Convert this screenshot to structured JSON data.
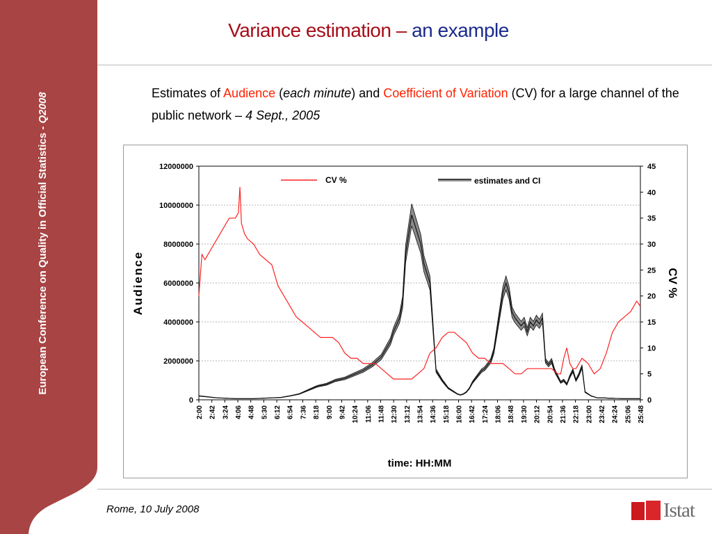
{
  "sidebar": {
    "conference": "European Conference on Quality in Official Statistics  -",
    "year": "Q2008",
    "color": "#a84444"
  },
  "slide": {
    "title_part1": "Variance estimation –",
    "title_part2": "an example"
  },
  "subtitle": {
    "p1": "Estimates of ",
    "audience": "Audience",
    "p2": " (",
    "each_minute": "each minute",
    "p3": ") and ",
    "cv": "Coefficient of Variation",
    "p4": " (CV) for a large channel of the public network – ",
    "date": "4 Sept., 2005"
  },
  "footer": {
    "location_date": "Rome, 10 July 2008"
  },
  "logo": {
    "text": "Istat"
  },
  "chart_data": {
    "type": "line",
    "xlabel": "time:  HH:MM",
    "ylabel": "Audience",
    "y2label": "CV %",
    "ylim": [
      0,
      12000000
    ],
    "y2lim": [
      0,
      45
    ],
    "yticks": [
      0,
      2000000,
      4000000,
      6000000,
      8000000,
      10000000,
      12000000
    ],
    "y2ticks": [
      0,
      5,
      10,
      15,
      20,
      25,
      30,
      35,
      40,
      45
    ],
    "xlim": [
      120,
      1572
    ],
    "xticks": [
      "2:00",
      "2:42",
      "3:24",
      "4:06",
      "4:48",
      "5:30",
      "6:12",
      "6:54",
      "7:36",
      "8:18",
      "9:00",
      "9:42",
      "10:24",
      "11:06",
      "11:48",
      "12:30",
      "13:12",
      "13:54",
      "14:36",
      "15:18",
      "16:00",
      "16:42",
      "17:24",
      "18:06",
      "18:48",
      "19:30",
      "20:12",
      "20:54",
      "21:36",
      "22:18",
      "23:00",
      "23:42",
      "24:24",
      "25:06",
      "25:48"
    ],
    "grid": "horizontal",
    "legend": [
      {
        "name": "CV %",
        "color": "#ff2020",
        "position": "top-left"
      },
      {
        "name": "estimates and CI",
        "color": "#000000",
        "position": "top-right"
      }
    ],
    "series": [
      {
        "name": "estimates and CI",
        "axis": "left",
        "color": "#111111",
        "band_color": "#8a8a8a",
        "x": [
          120,
          150,
          180,
          210,
          240,
          270,
          300,
          330,
          360,
          390,
          420,
          450,
          480,
          510,
          540,
          570,
          600,
          630,
          660,
          690,
          720,
          750,
          760,
          780,
          790,
          800,
          810,
          820,
          830,
          840,
          850,
          860,
          870,
          880,
          900,
          920,
          930,
          940,
          950,
          960,
          970,
          980,
          990,
          1000,
          1010,
          1020,
          1030,
          1040,
          1050,
          1060,
          1070,
          1080,
          1090,
          1100,
          1110,
          1120,
          1130,
          1140,
          1150,
          1160,
          1170,
          1180,
          1190,
          1200,
          1210,
          1220,
          1230,
          1240,
          1250,
          1260,
          1270,
          1280,
          1290,
          1300,
          1310,
          1320,
          1330,
          1340,
          1350,
          1360,
          1370,
          1380,
          1390,
          1400,
          1410,
          1420,
          1430,
          1440,
          1450,
          1460,
          1470,
          1480,
          1490,
          1500,
          1510,
          1520,
          1530,
          1540,
          1550,
          1560,
          1572
        ],
        "values": [
          200000,
          150000,
          100000,
          80000,
          60000,
          60000,
          60000,
          80000,
          100000,
          120000,
          200000,
          300000,
          500000,
          700000,
          800000,
          1000000,
          1100000,
          1300000,
          1500000,
          1800000,
          2200000,
          3000000,
          3500000,
          4200000,
          5000000,
          7500000,
          8500000,
          9500000,
          9000000,
          8500000,
          8000000,
          7000000,
          6500000,
          6000000,
          1500000,
          1000000,
          800000,
          600000,
          500000,
          400000,
          300000,
          250000,
          300000,
          400000,
          600000,
          900000,
          1100000,
          1300000,
          1500000,
          1600000,
          1800000,
          2000000,
          2500000,
          3500000,
          4500000,
          5500000,
          6000000,
          5500000,
          4500000,
          4200000,
          4000000,
          3800000,
          4000000,
          3500000,
          4000000,
          3800000,
          4100000,
          3900000,
          4200000,
          2000000,
          1800000,
          2000000,
          1500000,
          1200000,
          900000,
          1000000,
          800000,
          1200000,
          1500000,
          1000000,
          1300000,
          1700000,
          400000,
          300000,
          200000,
          150000,
          100000,
          100000,
          100000,
          90000,
          80000,
          80000,
          70000,
          70000,
          60000,
          60000,
          60000,
          60000,
          60000,
          60000,
          60000
        ],
        "ci_halfwidth_fraction": 0.06
      },
      {
        "name": "CV %",
        "axis": "right",
        "color": "#ff2020",
        "x": [
          120,
          125,
          130,
          140,
          160,
          180,
          200,
          220,
          240,
          250,
          255,
          260,
          270,
          280,
          300,
          320,
          340,
          360,
          380,
          400,
          420,
          440,
          460,
          480,
          500,
          520,
          540,
          560,
          580,
          600,
          620,
          640,
          660,
          680,
          700,
          720,
          740,
          760,
          780,
          800,
          820,
          840,
          860,
          880,
          900,
          920,
          940,
          960,
          980,
          1000,
          1020,
          1040,
          1060,
          1080,
          1100,
          1120,
          1140,
          1160,
          1180,
          1200,
          1220,
          1240,
          1260,
          1280,
          1300,
          1310,
          1320,
          1330,
          1340,
          1350,
          1360,
          1380,
          1400,
          1420,
          1440,
          1460,
          1480,
          1500,
          1520,
          1540,
          1560,
          1572
        ],
        "values": [
          20,
          24,
          28,
          27,
          29,
          31,
          33,
          35,
          35,
          36,
          41,
          34,
          32,
          31,
          30,
          28,
          27,
          26,
          22,
          20,
          18,
          16,
          15,
          14,
          13,
          12,
          12,
          12,
          11,
          9,
          8,
          8,
          7,
          7,
          7,
          6,
          5,
          4,
          4,
          4,
          4,
          5,
          6,
          9,
          10,
          12,
          13,
          13,
          12,
          11,
          9,
          8,
          8,
          7,
          7,
          7,
          6,
          5,
          5,
          6,
          6,
          6,
          6,
          6,
          5,
          5,
          8,
          10,
          7,
          6,
          6,
          8,
          7,
          5,
          6,
          9,
          13,
          15,
          16,
          17,
          19,
          18
        ]
      }
    ]
  }
}
